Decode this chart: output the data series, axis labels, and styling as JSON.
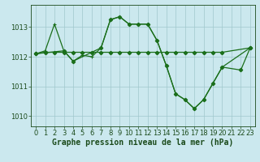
{
  "title": "Graphe pression niveau de la mer (hPa)",
  "bg_color": "#cbe8ee",
  "grid_color": "#a0c8cc",
  "line_color": "#1a6e1a",
  "xlim": [
    -0.5,
    23.5
  ],
  "ylim": [
    1009.65,
    1013.75
  ],
  "yticks": [
    1010,
    1011,
    1012,
    1013
  ],
  "xticks": [
    0,
    1,
    2,
    3,
    4,
    5,
    6,
    7,
    8,
    9,
    10,
    11,
    12,
    13,
    14,
    15,
    16,
    17,
    18,
    19,
    20,
    21,
    22,
    23
  ],
  "series_main": {
    "x": [
      0,
      1,
      2,
      3,
      4,
      5,
      6,
      7,
      8,
      9,
      10,
      11,
      12,
      13,
      14,
      15,
      16,
      17,
      18,
      19,
      20,
      23
    ],
    "y": [
      1012.1,
      1012.2,
      1013.1,
      1012.2,
      1011.85,
      1012.05,
      1012.0,
      1012.3,
      1013.25,
      1013.35,
      1013.1,
      1013.1,
      1013.1,
      1012.55,
      1011.7,
      1010.75,
      1010.55,
      1010.25,
      1010.55,
      1011.1,
      1011.65,
      1012.3
    ]
  },
  "series_flat": {
    "x": [
      0,
      1,
      2,
      3,
      4,
      5,
      6,
      7,
      8,
      9,
      10,
      11,
      12,
      13,
      14,
      15,
      16,
      17,
      18,
      19,
      20,
      23
    ],
    "y": [
      1012.1,
      1012.15,
      1012.15,
      1012.15,
      1012.15,
      1012.15,
      1012.15,
      1012.15,
      1012.15,
      1012.15,
      1012.15,
      1012.15,
      1012.15,
      1012.15,
      1012.15,
      1012.15,
      1012.15,
      1012.15,
      1012.15,
      1012.15,
      1012.15,
      1012.3
    ]
  },
  "series_drop": {
    "x": [
      0,
      3,
      4,
      7,
      8,
      9,
      10,
      11,
      12,
      13,
      14,
      15,
      16,
      17,
      18,
      19,
      20,
      22,
      23
    ],
    "y": [
      1012.1,
      1012.2,
      1011.85,
      1012.3,
      1013.25,
      1013.35,
      1013.1,
      1013.1,
      1013.1,
      1012.55,
      1011.7,
      1010.75,
      1010.55,
      1010.25,
      1010.55,
      1011.1,
      1011.65,
      1011.55,
      1012.3
    ]
  },
  "font_color": "#1a4a1a",
  "tick_fontsize": 6.0,
  "label_fontsize": 7.0
}
